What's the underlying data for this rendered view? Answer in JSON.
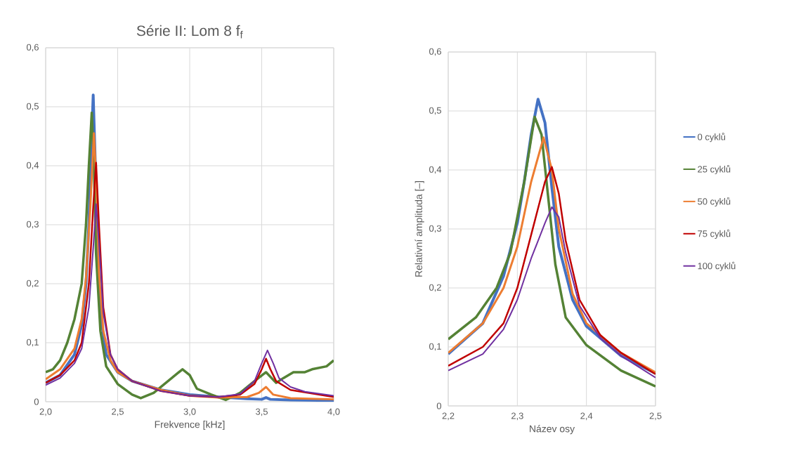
{
  "chart_data": [
    {
      "type": "line",
      "title": "Série II: Lom 8 f$_{f}$",
      "xlabel": "Frekvence [kHz]",
      "grid": true,
      "xlim": [
        2.0,
        4.0
      ],
      "xticks": [
        {
          "value": 2.0,
          "label": "2,0"
        },
        {
          "value": 2.5,
          "label": "2,5"
        },
        {
          "value": 3.0,
          "label": "3,0"
        },
        {
          "value": 3.5,
          "label": "3,5"
        },
        {
          "value": 4.0,
          "label": "4,0"
        }
      ],
      "ylim": [
        0,
        0.6
      ],
      "yticks": [
        0,
        {
          "value": 0.1,
          "label": "0,1"
        },
        {
          "value": 0.2,
          "label": "0,2"
        },
        {
          "value": 0.3,
          "label": "0,3"
        },
        {
          "value": 0.4,
          "label": "0,4"
        },
        {
          "value": 0.5,
          "label": "0,5"
        },
        {
          "value": 0.6,
          "label": "0,6"
        }
      ],
      "series": [
        {
          "color": "#4472c4",
          "x": [
            2.0,
            2.1,
            2.2,
            2.25,
            2.28,
            2.3,
            2.315,
            2.33,
            2.345,
            2.36,
            2.38,
            2.42,
            2.5,
            2.6,
            2.8,
            3.0,
            3.2,
            3.4,
            3.5,
            3.53,
            3.56,
            3.7,
            4.0
          ],
          "values": [
            0.032,
            0.045,
            0.08,
            0.13,
            0.2,
            0.3,
            0.42,
            0.52,
            0.4,
            0.25,
            0.15,
            0.08,
            0.05,
            0.035,
            0.02,
            0.012,
            0.008,
            0.005,
            0.004,
            0.007,
            0.004,
            0.003,
            0.002
          ]
        },
        {
          "color": "#548235",
          "x": [
            2.0,
            2.05,
            2.1,
            2.15,
            2.2,
            2.25,
            2.28,
            2.3,
            2.32,
            2.335,
            2.35,
            2.38,
            2.42,
            2.5,
            2.6,
            2.66,
            2.75,
            2.85,
            2.95,
            3.0,
            3.05,
            3.15,
            3.25,
            3.35,
            3.45,
            3.53,
            3.6,
            3.65,
            3.72,
            3.8,
            3.85,
            3.95,
            4.0
          ],
          "values": [
            0.05,
            0.055,
            0.07,
            0.1,
            0.14,
            0.2,
            0.3,
            0.4,
            0.49,
            0.4,
            0.25,
            0.12,
            0.06,
            0.03,
            0.012,
            0.006,
            0.015,
            0.035,
            0.055,
            0.045,
            0.022,
            0.012,
            0.003,
            0.015,
            0.035,
            0.05,
            0.032,
            0.04,
            0.05,
            0.05,
            0.055,
            0.06,
            0.07
          ]
        },
        {
          "color": "#ed7d31",
          "x": [
            2.0,
            2.1,
            2.2,
            2.25,
            2.28,
            2.31,
            2.335,
            2.35,
            2.37,
            2.4,
            2.45,
            2.5,
            2.6,
            2.8,
            3.0,
            3.2,
            3.4,
            3.48,
            3.53,
            3.58,
            3.7,
            4.0
          ],
          "values": [
            0.038,
            0.055,
            0.09,
            0.14,
            0.21,
            0.33,
            0.455,
            0.38,
            0.22,
            0.12,
            0.07,
            0.05,
            0.035,
            0.02,
            0.01,
            0.007,
            0.008,
            0.015,
            0.025,
            0.012,
            0.006,
            0.004
          ]
        },
        {
          "color": "#c00000",
          "x": [
            2.0,
            2.1,
            2.2,
            2.25,
            2.3,
            2.33,
            2.35,
            2.37,
            2.4,
            2.45,
            2.5,
            2.6,
            2.8,
            3.0,
            3.2,
            3.35,
            3.45,
            3.5,
            3.53,
            3.56,
            3.6,
            3.7,
            4.0
          ],
          "values": [
            0.032,
            0.045,
            0.07,
            0.1,
            0.2,
            0.33,
            0.405,
            0.3,
            0.16,
            0.08,
            0.055,
            0.035,
            0.018,
            0.01,
            0.008,
            0.012,
            0.03,
            0.055,
            0.073,
            0.055,
            0.035,
            0.02,
            0.008
          ]
        },
        {
          "color": "#7030a0",
          "x": [
            2.0,
            2.1,
            2.2,
            2.25,
            2.3,
            2.33,
            2.35,
            2.37,
            2.4,
            2.45,
            2.5,
            2.6,
            2.8,
            3.0,
            3.2,
            3.35,
            3.45,
            3.5,
            3.54,
            3.58,
            3.62,
            3.7,
            3.8,
            4.0
          ],
          "values": [
            0.028,
            0.04,
            0.065,
            0.09,
            0.16,
            0.26,
            0.335,
            0.27,
            0.15,
            0.08,
            0.055,
            0.035,
            0.018,
            0.01,
            0.008,
            0.013,
            0.035,
            0.065,
            0.087,
            0.065,
            0.04,
            0.025,
            0.017,
            0.01
          ]
        }
      ]
    },
    {
      "type": "line",
      "xlabel": "Název osy",
      "ylabel": "Relativní amplituda [–]",
      "grid": true,
      "legend": "right",
      "xlim": [
        2.2,
        2.5
      ],
      "xticks": [
        {
          "value": 2.2,
          "label": "2,2"
        },
        {
          "value": 2.3,
          "label": "2,3"
        },
        {
          "value": 2.4,
          "label": "2,4"
        },
        {
          "value": 2.5,
          "label": "2,5"
        }
      ],
      "ylim": [
        0,
        0.6
      ],
      "yticks": [
        0,
        {
          "value": 0.1,
          "label": "0,1"
        },
        {
          "value": 0.2,
          "label": "0,2"
        },
        {
          "value": 0.3,
          "label": "0,3"
        },
        {
          "value": 0.4,
          "label": "0,4"
        },
        {
          "value": 0.5,
          "label": "0,5"
        },
        {
          "value": 0.6,
          "label": "0,6"
        }
      ],
      "series": [
        {
          "name": "0 cyklů",
          "color": "#4472c4",
          "x": [
            2.2,
            2.25,
            2.28,
            2.3,
            2.31,
            2.32,
            2.33,
            2.34,
            2.35,
            2.36,
            2.38,
            2.4,
            2.45,
            2.5
          ],
          "values": [
            0.088,
            0.14,
            0.22,
            0.31,
            0.38,
            0.46,
            0.52,
            0.48,
            0.37,
            0.27,
            0.18,
            0.135,
            0.085,
            0.055
          ]
        },
        {
          "name": "25 cyklů",
          "color": "#548235",
          "x": [
            2.2,
            2.24,
            2.27,
            2.29,
            2.31,
            2.325,
            2.335,
            2.345,
            2.355,
            2.37,
            2.4,
            2.45,
            2.5
          ],
          "values": [
            0.113,
            0.15,
            0.2,
            0.26,
            0.38,
            0.49,
            0.46,
            0.35,
            0.24,
            0.15,
            0.103,
            0.06,
            0.033
          ]
        },
        {
          "name": "50 cyklů",
          "color": "#ed7d31",
          "x": [
            2.2,
            2.25,
            2.28,
            2.3,
            2.32,
            2.338,
            2.35,
            2.36,
            2.38,
            2.4,
            2.45,
            2.5
          ],
          "values": [
            0.09,
            0.14,
            0.2,
            0.27,
            0.38,
            0.455,
            0.4,
            0.3,
            0.19,
            0.14,
            0.09,
            0.057
          ]
        },
        {
          "name": "75 cyklů",
          "color": "#c00000",
          "x": [
            2.2,
            2.25,
            2.28,
            2.3,
            2.32,
            2.34,
            2.35,
            2.36,
            2.37,
            2.39,
            2.42,
            2.45,
            2.5
          ],
          "values": [
            0.068,
            0.1,
            0.14,
            0.2,
            0.29,
            0.38,
            0.405,
            0.36,
            0.28,
            0.18,
            0.12,
            0.09,
            0.054
          ]
        },
        {
          "name": "100 cyklů",
          "color": "#7030a0",
          "x": [
            2.2,
            2.25,
            2.28,
            2.3,
            2.32,
            2.34,
            2.35,
            2.36,
            2.37,
            2.39,
            2.42,
            2.45,
            2.5
          ],
          "values": [
            0.06,
            0.088,
            0.13,
            0.18,
            0.25,
            0.31,
            0.337,
            0.32,
            0.26,
            0.17,
            0.115,
            0.085,
            0.048
          ]
        }
      ]
    }
  ]
}
